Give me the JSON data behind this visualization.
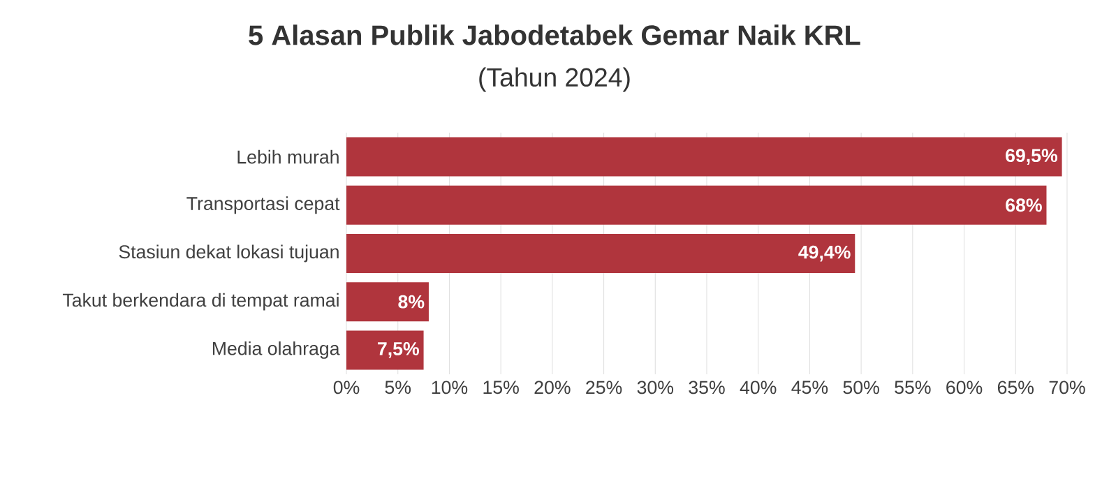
{
  "chart_data": {
    "type": "bar",
    "orientation": "horizontal",
    "title": "5 Alasan Publik Jabodetabek Gemar Naik KRL",
    "subtitle": "(Tahun 2024)",
    "categories": [
      "Lebih murah",
      "Transportasi cepat",
      "Stasiun dekat lokasi tujuan",
      "Takut berkendara di tempat ramai",
      "Media olahraga"
    ],
    "values": [
      69.5,
      68,
      49.4,
      8,
      7.5
    ],
    "value_labels": [
      "69,5%",
      "68%",
      "49,4%",
      "8%",
      "7,5%"
    ],
    "color": "#b0353d",
    "xlim": [
      0,
      70
    ],
    "xticks": [
      {
        "value": 0,
        "label": "0%"
      },
      {
        "value": 5,
        "label": "5%"
      },
      {
        "value": 10,
        "label": "10%"
      },
      {
        "value": 15,
        "label": "15%"
      },
      {
        "value": 20,
        "label": "20%"
      },
      {
        "value": 25,
        "label": "25%"
      },
      {
        "value": 30,
        "label": "30%"
      },
      {
        "value": 35,
        "label": "35%"
      },
      {
        "value": 40,
        "label": "40%"
      },
      {
        "value": 45,
        "label": "45%"
      },
      {
        "value": 50,
        "label": "50%"
      },
      {
        "value": 55,
        "label": "55%"
      },
      {
        "value": 60,
        "label": "60%"
      },
      {
        "value": 65,
        "label": "65%"
      },
      {
        "value": 70,
        "label": "70%"
      }
    ],
    "grid": "x"
  }
}
